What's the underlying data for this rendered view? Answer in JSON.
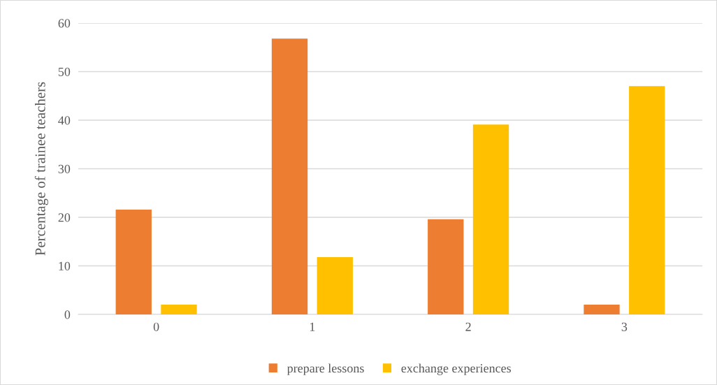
{
  "chart_data": {
    "type": "bar",
    "ylabel": "Percentage of trainee teachers",
    "categories": [
      "0",
      "1",
      "2",
      "3"
    ],
    "series": [
      {
        "name": "prepare lessons",
        "color": "#ed7d31",
        "values": [
          21.6,
          56.8,
          19.6,
          2.0
        ]
      },
      {
        "name": "exchange experiences",
        "color": "#ffc000",
        "values": [
          2.0,
          11.8,
          39.1,
          47.0
        ]
      }
    ],
    "ylim": [
      0,
      60
    ],
    "yticks": [
      0,
      10,
      20,
      30,
      40,
      50,
      60
    ],
    "grid": "y",
    "legend": "bottom"
  }
}
